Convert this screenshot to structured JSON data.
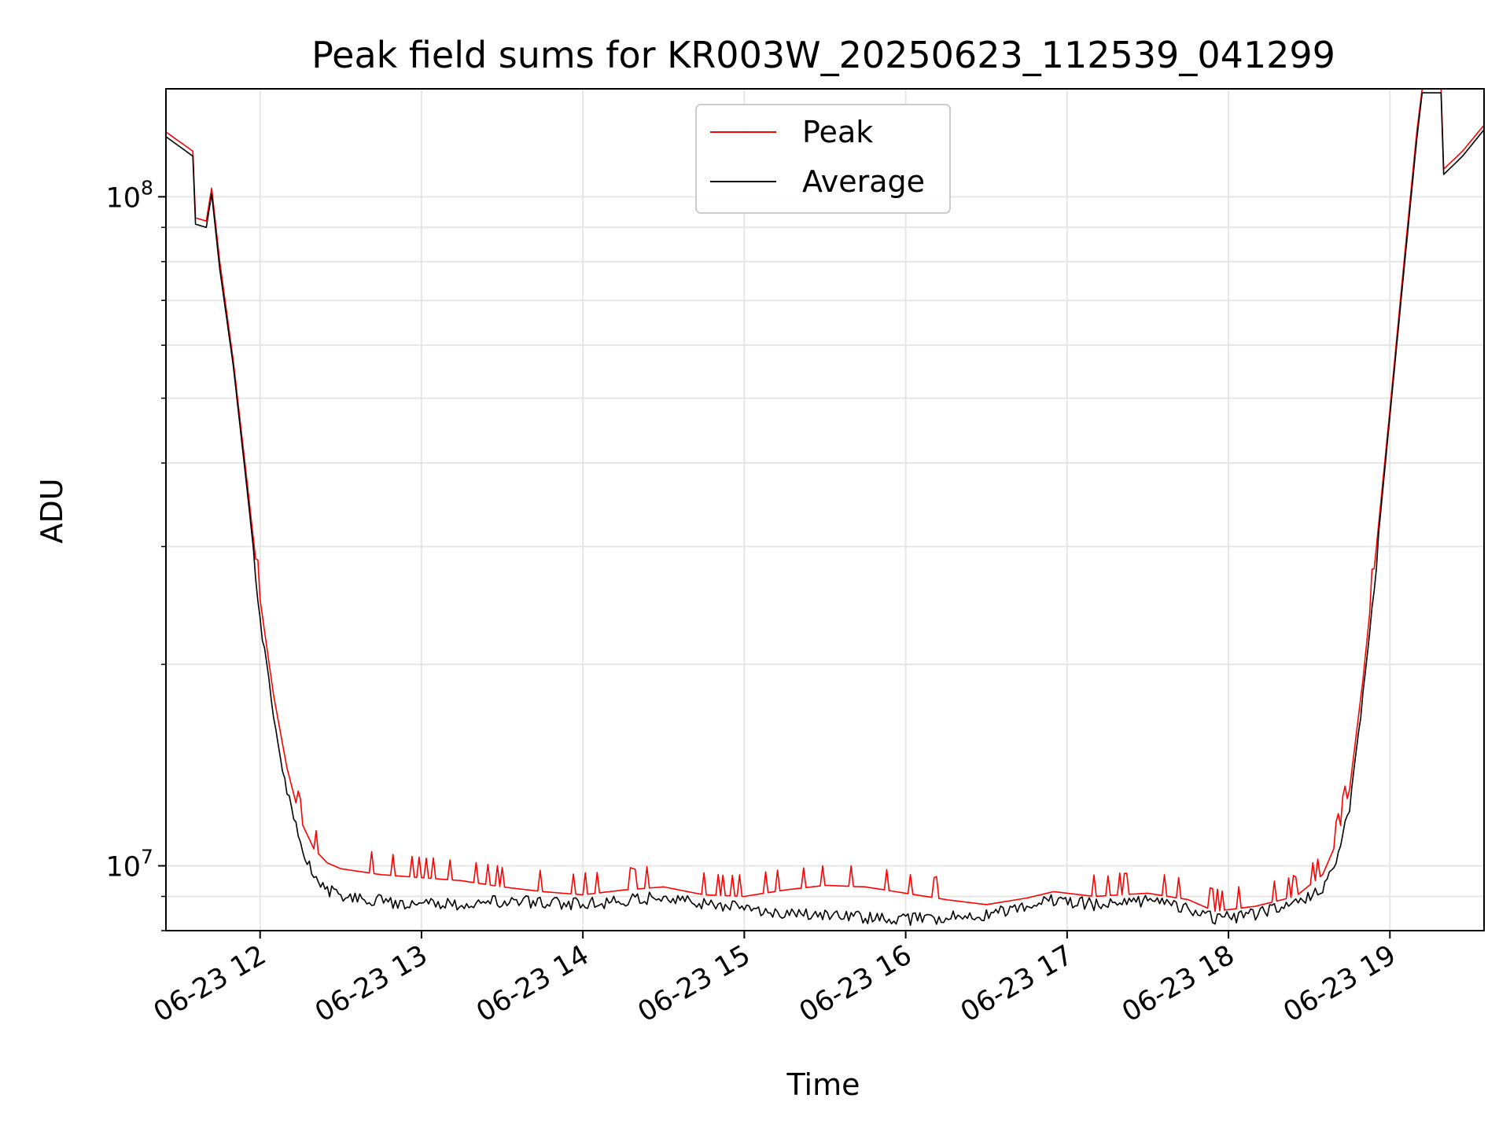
{
  "chart_data": {
    "type": "line",
    "title": "Peak field sums for KR003W_20250623_112539_041299",
    "xlabel": "Time",
    "ylabel": "ADU",
    "y_scale": "log",
    "xlim": [
      "2025-06-23 11:25",
      "2025-06-23 19:35"
    ],
    "ylim": [
      8000000,
      145000000
    ],
    "x_ticks": [
      "06-23 12",
      "06-23 13",
      "06-23 14",
      "06-23 15",
      "06-23 16",
      "06-23 17",
      "06-23 18",
      "06-23 19"
    ],
    "y_ticks": [
      {
        "value": 10000000,
        "base": "10",
        "exp": "7"
      },
      {
        "value": 100000000,
        "base": "10",
        "exp": "8"
      }
    ],
    "grid": true,
    "legend_position": "top-center",
    "series": [
      {
        "name": "Peak",
        "color": "#ff0000",
        "points": [
          [
            "2025-06-23 11:25",
            125000000
          ],
          [
            "2025-06-23 11:35",
            117000000
          ],
          [
            "2025-06-23 11:36",
            93000000
          ],
          [
            "2025-06-23 11:40",
            92000000
          ],
          [
            "2025-06-23 11:42",
            103000000
          ],
          [
            "2025-06-23 11:45",
            80000000
          ],
          [
            "2025-06-23 11:50",
            57000000
          ],
          [
            "2025-06-23 11:55",
            38000000
          ],
          [
            "2025-06-23 12:00",
            25000000
          ],
          [
            "2025-06-23 12:05",
            18000000
          ],
          [
            "2025-06-23 12:10",
            14000000
          ],
          [
            "2025-06-23 12:15",
            11700000
          ],
          [
            "2025-06-23 12:20",
            10600000
          ],
          [
            "2025-06-23 12:25",
            10100000
          ],
          [
            "2025-06-23 12:30",
            9900000
          ],
          [
            "2025-06-23 12:45",
            9700000
          ],
          [
            "2025-06-23 13:00",
            9600000
          ],
          [
            "2025-06-23 13:15",
            9500000
          ],
          [
            "2025-06-23 13:30",
            9300000
          ],
          [
            "2025-06-23 13:45",
            9150000
          ],
          [
            "2025-06-23 14:00",
            9050000
          ],
          [
            "2025-06-23 14:15",
            9200000
          ],
          [
            "2025-06-23 14:30",
            9300000
          ],
          [
            "2025-06-23 14:45",
            9050000
          ],
          [
            "2025-06-23 15:00",
            9000000
          ],
          [
            "2025-06-23 15:15",
            9200000
          ],
          [
            "2025-06-23 15:30",
            9350000
          ],
          [
            "2025-06-23 15:45",
            9300000
          ],
          [
            "2025-06-23 16:00",
            9100000
          ],
          [
            "2025-06-23 16:15",
            8900000
          ],
          [
            "2025-06-23 16:30",
            8750000
          ],
          [
            "2025-06-23 16:45",
            8950000
          ],
          [
            "2025-06-23 16:55",
            9150000
          ],
          [
            "2025-06-23 17:10",
            9000000
          ],
          [
            "2025-06-23 17:30",
            9100000
          ],
          [
            "2025-06-23 17:45",
            8900000
          ],
          [
            "2025-06-23 17:55",
            8550000
          ],
          [
            "2025-06-23 18:10",
            8700000
          ],
          [
            "2025-06-23 18:25",
            9000000
          ],
          [
            "2025-06-23 18:35",
            9700000
          ],
          [
            "2025-06-23 18:40",
            10800000
          ],
          [
            "2025-06-23 18:45",
            13000000
          ],
          [
            "2025-06-23 18:50",
            19000000
          ],
          [
            "2025-06-23 18:55",
            30000000
          ],
          [
            "2025-06-23 19:00",
            48000000
          ],
          [
            "2025-06-23 19:05",
            78000000
          ],
          [
            "2025-06-23 19:10",
            125000000
          ],
          [
            "2025-06-23 19:12",
            145000000
          ],
          [
            "2025-06-23 19:19",
            145000000
          ],
          [
            "2025-06-23 19:20",
            110000000
          ],
          [
            "2025-06-23 19:27",
            117000000
          ],
          [
            "2025-06-23 19:35",
            128000000
          ]
        ]
      },
      {
        "name": "Average",
        "color": "#000000",
        "points": [
          [
            "2025-06-23 11:25",
            123000000
          ],
          [
            "2025-06-23 11:35",
            115000000
          ],
          [
            "2025-06-23 11:36",
            91000000
          ],
          [
            "2025-06-23 11:40",
            90000000
          ],
          [
            "2025-06-23 11:42",
            101000000
          ],
          [
            "2025-06-23 11:45",
            78000000
          ],
          [
            "2025-06-23 11:50",
            56000000
          ],
          [
            "2025-06-23 11:55",
            37000000
          ],
          [
            "2025-06-23 12:00",
            24000000
          ],
          [
            "2025-06-23 12:05",
            17000000
          ],
          [
            "2025-06-23 12:10",
            13300000
          ],
          [
            "2025-06-23 12:15",
            11000000
          ],
          [
            "2025-06-23 12:20",
            9900000
          ],
          [
            "2025-06-23 12:25",
            9400000
          ],
          [
            "2025-06-23 12:30",
            9200000
          ],
          [
            "2025-06-23 12:45",
            9050000
          ],
          [
            "2025-06-23 13:00",
            8950000
          ],
          [
            "2025-06-23 13:15",
            8950000
          ],
          [
            "2025-06-23 13:30",
            9050000
          ],
          [
            "2025-06-23 13:45",
            9000000
          ],
          [
            "2025-06-23 14:00",
            8950000
          ],
          [
            "2025-06-23 14:15",
            9050000
          ],
          [
            "2025-06-23 14:30",
            9200000
          ],
          [
            "2025-06-23 14:45",
            8950000
          ],
          [
            "2025-06-23 15:00",
            8850000
          ],
          [
            "2025-06-23 15:15",
            8700000
          ],
          [
            "2025-06-23 15:30",
            8600000
          ],
          [
            "2025-06-23 15:45",
            8550000
          ],
          [
            "2025-06-23 16:00",
            8500000
          ],
          [
            "2025-06-23 16:15",
            8550000
          ],
          [
            "2025-06-23 16:30",
            8650000
          ],
          [
            "2025-06-23 16:45",
            8850000
          ],
          [
            "2025-06-23 16:55",
            9100000
          ],
          [
            "2025-06-23 17:10",
            8950000
          ],
          [
            "2025-06-23 17:30",
            9050000
          ],
          [
            "2025-06-23 17:45",
            8850000
          ],
          [
            "2025-06-23 17:55",
            8500000
          ],
          [
            "2025-06-23 18:10",
            8650000
          ],
          [
            "2025-06-23 18:25",
            8950000
          ],
          [
            "2025-06-23 18:35",
            9500000
          ],
          [
            "2025-06-23 18:40",
            10500000
          ],
          [
            "2025-06-23 18:45",
            12500000
          ],
          [
            "2025-06-23 18:50",
            18500000
          ],
          [
            "2025-06-23 18:55",
            29000000
          ],
          [
            "2025-06-23 19:00",
            47000000
          ],
          [
            "2025-06-23 19:05",
            76000000
          ],
          [
            "2025-06-23 19:10",
            122000000
          ],
          [
            "2025-06-23 19:12",
            143000000
          ],
          [
            "2025-06-23 19:19",
            143000000
          ],
          [
            "2025-06-23 19:20",
            108000000
          ],
          [
            "2025-06-23 19:27",
            115000000
          ],
          [
            "2025-06-23 19:35",
            126000000
          ]
        ]
      }
    ]
  }
}
